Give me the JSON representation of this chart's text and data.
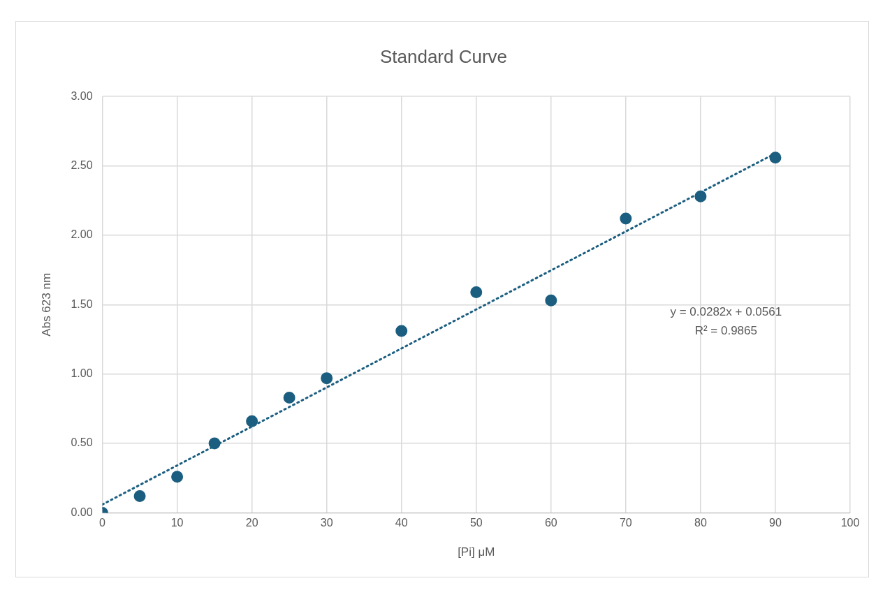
{
  "chart_data": {
    "type": "scatter",
    "title": "Standard Curve",
    "xlabel": "[Pi] μM",
    "ylabel": "Abs 623 nm",
    "xlim": [
      0,
      100
    ],
    "xticks": [
      0,
      10,
      20,
      30,
      40,
      50,
      60,
      70,
      80,
      90,
      100
    ],
    "ylim": [
      0,
      3
    ],
    "yticks": [
      {
        "value": 0,
        "label": "0.00"
      },
      {
        "value": 0.5,
        "label": "0.50"
      },
      {
        "value": 1,
        "label": "1.00"
      },
      {
        "value": 1.5,
        "label": "1.50"
      },
      {
        "value": 2,
        "label": "2.00"
      },
      {
        "value": 2.5,
        "label": "2.50"
      },
      {
        "value": 3,
        "label": "3.00"
      }
    ],
    "grid": true,
    "legend": false,
    "marker": "circle",
    "series": [
      {
        "color": "#1b5e80",
        "x": [
          0,
          5,
          10,
          15,
          20,
          25,
          30,
          40,
          50,
          60,
          70,
          80,
          90
        ],
        "values": [
          0,
          0.12,
          0.26,
          0.5,
          0.66,
          0.83,
          0.97,
          1.31,
          1.59,
          1.53,
          2.12,
          2.28,
          2.56
        ]
      },
      {
        "type": "line",
        "color": "#1b5e80",
        "line_style": "dotted",
        "marker": "none",
        "x": [
          0,
          90
        ],
        "values": [
          0.06,
          2.59
        ]
      }
    ],
    "annotations": [
      "y = 0.0282x + 0.0561",
      "R² = 0.9865"
    ]
  }
}
